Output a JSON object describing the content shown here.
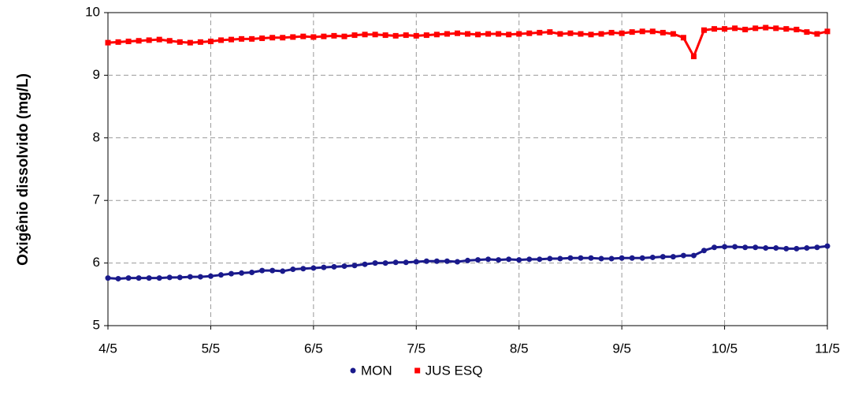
{
  "chart_data": {
    "type": "scatter",
    "y_label": "Oxigênio dissolvido (mg/L)",
    "x": [
      4.0,
      4.1,
      4.2,
      4.3,
      4.4,
      4.5,
      4.6,
      4.7,
      4.8,
      4.9,
      5.0,
      5.1,
      5.2,
      5.3,
      5.4,
      5.5,
      5.6,
      5.7,
      5.8,
      5.9,
      6.0,
      6.1,
      6.2,
      6.3,
      6.4,
      6.5,
      6.6,
      6.7,
      6.8,
      6.9,
      7.0,
      7.1,
      7.2,
      7.3,
      7.4,
      7.5,
      7.6,
      7.7,
      7.8,
      7.9,
      8.0,
      8.1,
      8.2,
      8.3,
      8.4,
      8.5,
      8.6,
      8.7,
      8.8,
      8.9,
      9.0,
      9.1,
      9.2,
      9.3,
      9.4,
      9.5,
      9.6,
      9.7,
      9.8,
      9.9,
      10.0,
      10.1,
      10.2,
      10.3,
      10.4,
      10.5,
      10.6,
      10.7,
      10.8,
      10.9,
      11.0
    ],
    "series": [
      {
        "name": "MON",
        "color": "#1a1a8c",
        "marker": "circle",
        "values": [
          5.76,
          5.75,
          5.76,
          5.76,
          5.76,
          5.76,
          5.77,
          5.77,
          5.78,
          5.78,
          5.79,
          5.81,
          5.83,
          5.84,
          5.85,
          5.88,
          5.88,
          5.87,
          5.9,
          5.91,
          5.92,
          5.93,
          5.94,
          5.95,
          5.96,
          5.98,
          6.0,
          6.0,
          6.01,
          6.01,
          6.02,
          6.03,
          6.03,
          6.03,
          6.02,
          6.04,
          6.05,
          6.06,
          6.05,
          6.06,
          6.05,
          6.06,
          6.06,
          6.07,
          6.07,
          6.08,
          6.08,
          6.08,
          6.07,
          6.07,
          6.08,
          6.08,
          6.08,
          6.09,
          6.1,
          6.1,
          6.12,
          6.12,
          6.2,
          6.25,
          6.26,
          6.26,
          6.25,
          6.25,
          6.24,
          6.24,
          6.23,
          6.23,
          6.24,
          6.25,
          6.27
        ]
      },
      {
        "name": "JUS ESQ",
        "color": "#ff0000",
        "marker": "square",
        "values": [
          9.52,
          9.53,
          9.54,
          9.55,
          9.56,
          9.57,
          9.55,
          9.53,
          9.52,
          9.53,
          9.54,
          9.56,
          9.57,
          9.58,
          9.58,
          9.59,
          9.6,
          9.6,
          9.61,
          9.62,
          9.61,
          9.62,
          9.63,
          9.62,
          9.64,
          9.65,
          9.65,
          9.64,
          9.63,
          9.64,
          9.63,
          9.64,
          9.65,
          9.66,
          9.67,
          9.66,
          9.65,
          9.66,
          9.66,
          9.65,
          9.66,
          9.67,
          9.68,
          9.69,
          9.66,
          9.67,
          9.66,
          9.65,
          9.66,
          9.68,
          9.67,
          9.69,
          9.7,
          9.7,
          9.68,
          9.66,
          9.6,
          9.3,
          9.72,
          9.74,
          9.74,
          9.75,
          9.73,
          9.75,
          9.76,
          9.75,
          9.74,
          9.73,
          9.69,
          9.66,
          9.7
        ]
      }
    ],
    "xlim": [
      4,
      11
    ],
    "xticks": [
      {
        "value": 4,
        "label": "4/5"
      },
      {
        "value": 5,
        "label": "5/5"
      },
      {
        "value": 6,
        "label": "6/5"
      },
      {
        "value": 7,
        "label": "7/5"
      },
      {
        "value": 8,
        "label": "8/5"
      },
      {
        "value": 9,
        "label": "9/5"
      },
      {
        "value": 10,
        "label": "10/5"
      },
      {
        "value": 11,
        "label": "11/5"
      }
    ],
    "ylim": [
      5,
      10
    ],
    "yticks": [
      5,
      6,
      7,
      8,
      9,
      10
    ],
    "grid": true,
    "legend": "bottom"
  }
}
